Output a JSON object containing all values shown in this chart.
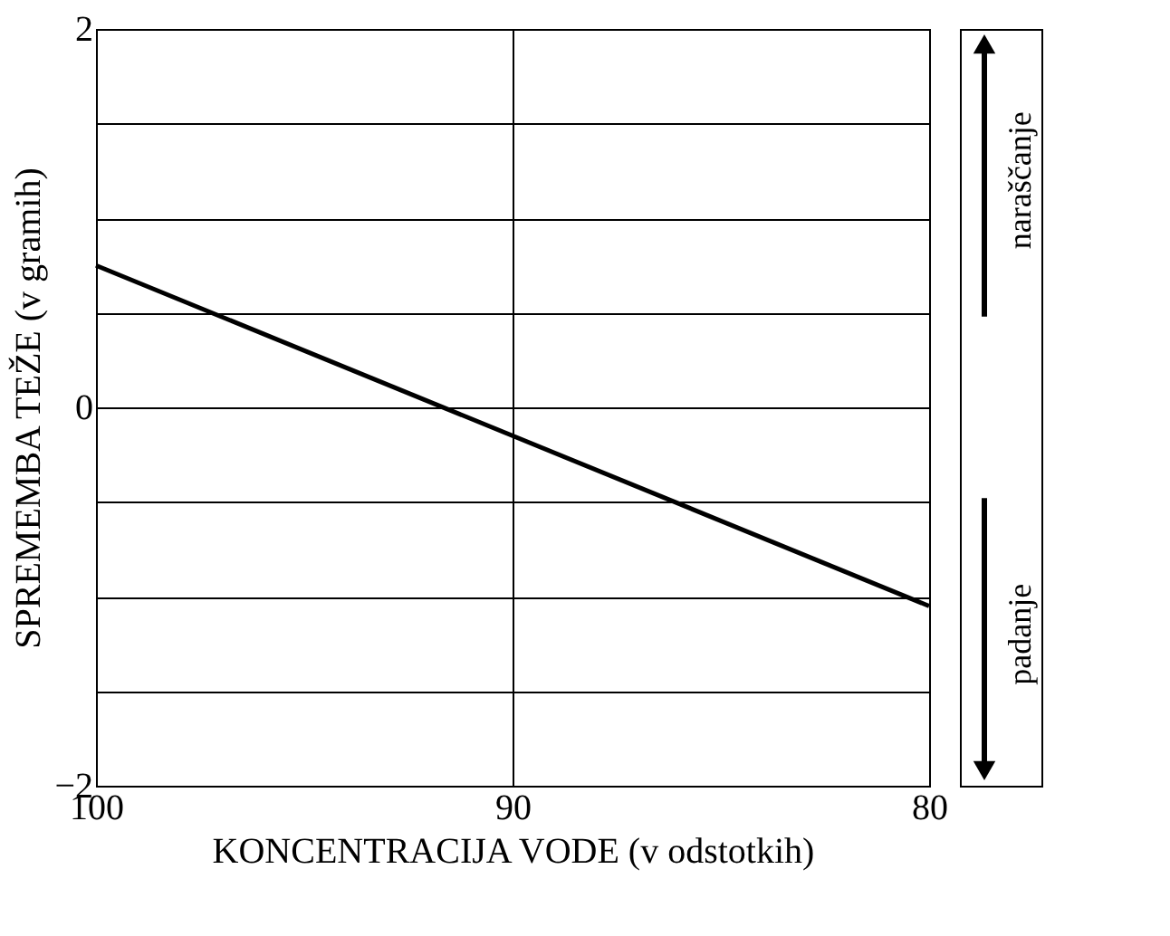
{
  "chart_data": {
    "type": "line",
    "xlabel": "KONCENTRACIJA VODE (v odstotkih)",
    "ylabel": "SPREMEMBA TEŽE (v gramih)",
    "x": [
      100,
      80
    ],
    "series": [
      {
        "color": "#000000",
        "values": [
          0.75,
          -1.05
        ]
      }
    ],
    "xlim": [
      100,
      80
    ],
    "ylim": [
      -2,
      2
    ],
    "xticks": [
      100,
      90,
      80
    ],
    "yticks": [
      -2,
      {
        "value": -1.5,
        "label": null
      },
      {
        "value": -1,
        "label": null
      },
      {
        "value": -0.5,
        "label": null
      },
      0,
      {
        "value": 0.5,
        "label": null
      },
      {
        "value": 1,
        "label": null
      },
      {
        "value": 1.5,
        "label": null
      },
      2
    ],
    "grid": true,
    "marker": "none",
    "line_style": "solid",
    "annotations": [
      "naraščanje",
      "padanje"
    ]
  }
}
